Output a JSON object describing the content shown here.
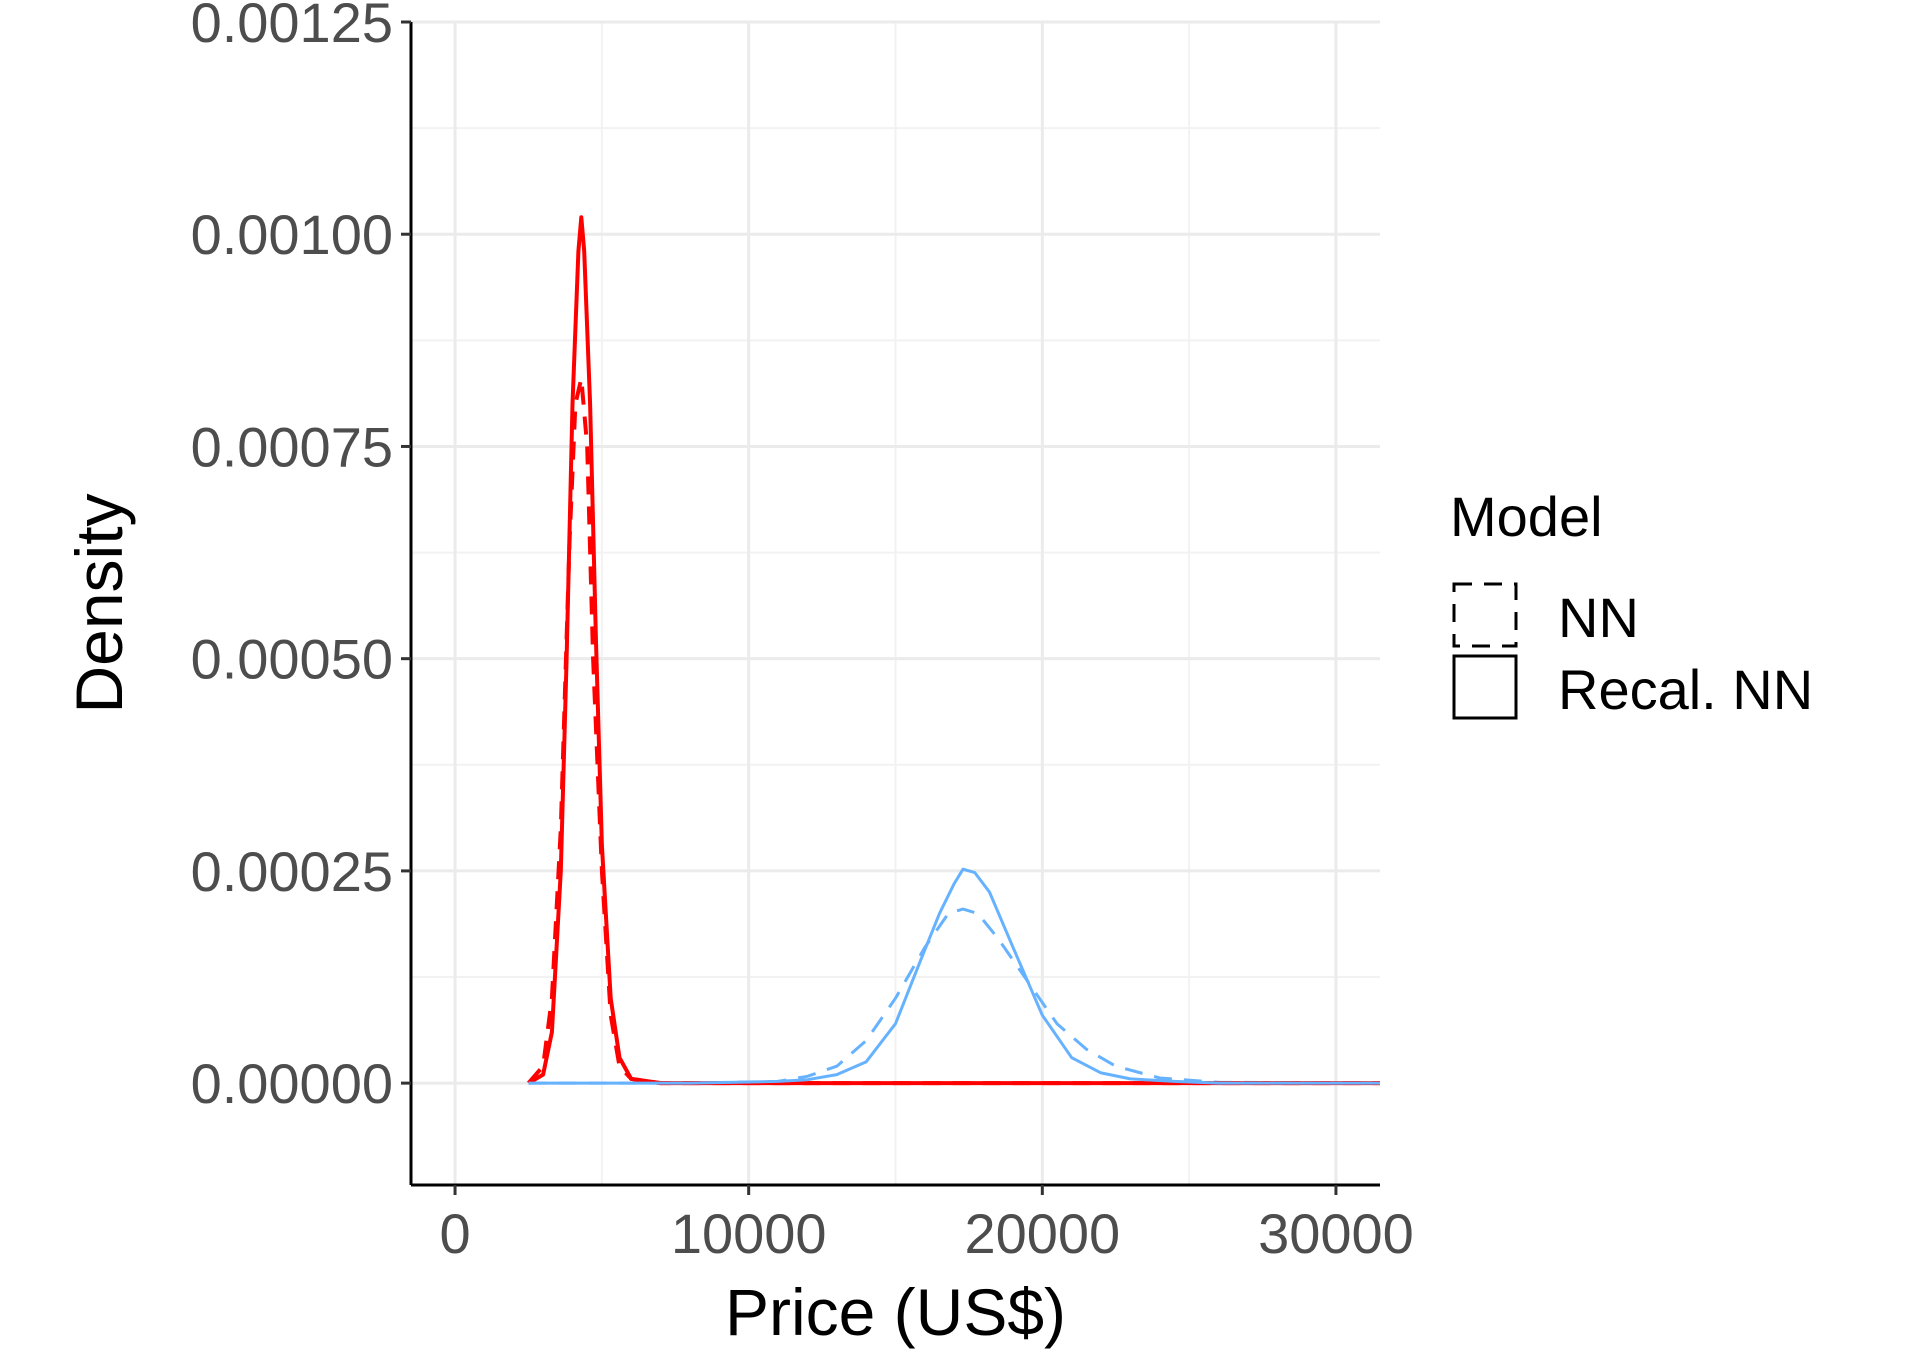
{
  "chart_data": {
    "type": "line",
    "xlabel": "Price (US$)",
    "ylabel": "Density",
    "xlim": [
      -1500,
      31500
    ],
    "ylim": [
      -0.00012,
      0.00125
    ],
    "x_ticks": [
      0,
      10000,
      20000,
      30000
    ],
    "x_tick_labels": [
      "0",
      "10000",
      "20000",
      "30000"
    ],
    "y_ticks": [
      0,
      0.00025,
      0.0005,
      0.00075,
      0.001,
      0.00125
    ],
    "y_tick_labels": [
      "0.00000",
      "0.00025",
      "0.00050",
      "0.00075",
      "0.00100",
      "0.00125"
    ],
    "grid": true,
    "legend": {
      "title": "Model",
      "position": "right",
      "entries": [
        {
          "label": "NN",
          "linetype": "dashed"
        },
        {
          "label": "Recal. NN",
          "linetype": "solid"
        }
      ]
    },
    "colors": {
      "red_group": "#ff0000",
      "blue_group": "#66b2ff"
    },
    "series": [
      {
        "model": "NN",
        "group": "red",
        "color": "#ff0000",
        "linetype": "dashed",
        "x": [
          2500,
          3000,
          3300,
          3600,
          3900,
          4100,
          4300,
          4500,
          4700,
          5000,
          5300,
          5600,
          6000,
          7000,
          10000,
          20000,
          31500
        ],
        "y": [
          0,
          2e-05,
          0.0001,
          0.0003,
          0.00064,
          0.0008,
          0.00083,
          0.00075,
          0.0005,
          0.00025,
          8e-05,
          2e-05,
          5e-06,
          0,
          0,
          0,
          0
        ]
      },
      {
        "model": "Recal. NN",
        "group": "red",
        "color": "#ff0000",
        "linetype": "solid",
        "x": [
          2500,
          3000,
          3300,
          3600,
          3800,
          4000,
          4200,
          4300,
          4400,
          4600,
          4800,
          5000,
          5300,
          5600,
          6000,
          7000,
          10000,
          20000,
          31500
        ],
        "y": [
          0,
          1e-05,
          6e-05,
          0.00025,
          0.0005,
          0.0008,
          0.00098,
          0.00102,
          0.00098,
          0.0008,
          0.00052,
          0.00028,
          0.0001,
          3e-05,
          5e-06,
          0,
          0,
          0,
          0
        ]
      },
      {
        "model": "NN",
        "group": "blue",
        "color": "#66b2ff",
        "linetype": "dashed",
        "x": [
          2500,
          8000,
          11000,
          12000,
          13000,
          14000,
          15000,
          16000,
          16800,
          17300,
          17800,
          18500,
          19500,
          20500,
          21500,
          22500,
          24000,
          26000,
          31500
        ],
        "y": [
          0,
          0,
          2e-06,
          8e-06,
          2e-05,
          5e-05,
          0.0001,
          0.00016,
          0.0002,
          0.000205,
          0.0002,
          0.00017,
          0.00012,
          7e-05,
          4e-05,
          2e-05,
          6e-06,
          1e-06,
          0
        ]
      },
      {
        "model": "Recal. NN",
        "group": "blue",
        "color": "#66b2ff",
        "linetype": "solid",
        "x": [
          2500,
          8000,
          11000,
          12000,
          13000,
          14000,
          15000,
          15800,
          16500,
          17000,
          17300,
          17700,
          18200,
          19000,
          20000,
          21000,
          22000,
          23000,
          24500,
          26000,
          31500
        ],
        "y": [
          0,
          0,
          2e-06,
          4e-06,
          1e-05,
          2.5e-05,
          7e-05,
          0.00014,
          0.0002,
          0.000235,
          0.000252,
          0.000248,
          0.000225,
          0.00016,
          8e-05,
          3e-05,
          1.2e-05,
          5e-06,
          2e-06,
          0,
          0
        ]
      }
    ]
  }
}
